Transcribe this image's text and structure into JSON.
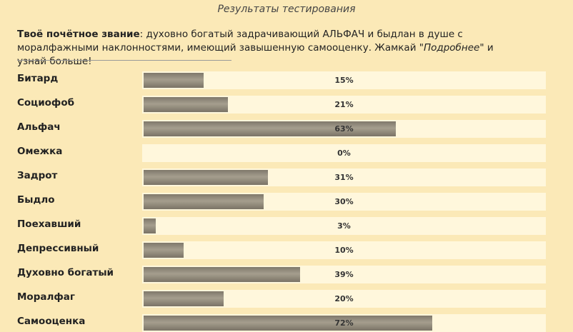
{
  "header": {
    "title": "Результаты тестирования"
  },
  "verdict": {
    "prefix": "Твоё почётное звание",
    "text_1": ": духовно богатый задрачивающий АЛЬФАЧ и быдлан в душе с моралфажными наклонностями, имеющий завышенную самооценку. Жамкай \"",
    "emphasis": "Подробнее",
    "text_2": "\" и узнай больше!"
  },
  "results": [
    {
      "label": "Битард",
      "value": 15,
      "display": "15%"
    },
    {
      "label": "Социофоб",
      "value": 21,
      "display": "21%"
    },
    {
      "label": "Альфач",
      "value": 63,
      "display": "63%"
    },
    {
      "label": "Омежка",
      "value": 0,
      "display": "0%"
    },
    {
      "label": "Задрот",
      "value": 31,
      "display": "31%"
    },
    {
      "label": "Быдло",
      "value": 30,
      "display": "30%"
    },
    {
      "label": "Поехавший",
      "value": 3,
      "display": "3%"
    },
    {
      "label": "Депрессивный",
      "value": 10,
      "display": "10%"
    },
    {
      "label": "Духовно богатый",
      "value": 39,
      "display": "39%"
    },
    {
      "label": "Моралфаг",
      "value": 20,
      "display": "20%"
    },
    {
      "label": "Самооценка",
      "value": 72,
      "display": "72%"
    }
  ],
  "colors": {
    "background": "#fbe9b7",
    "track": "#fff7dc",
    "bar": "#9a9383"
  }
}
